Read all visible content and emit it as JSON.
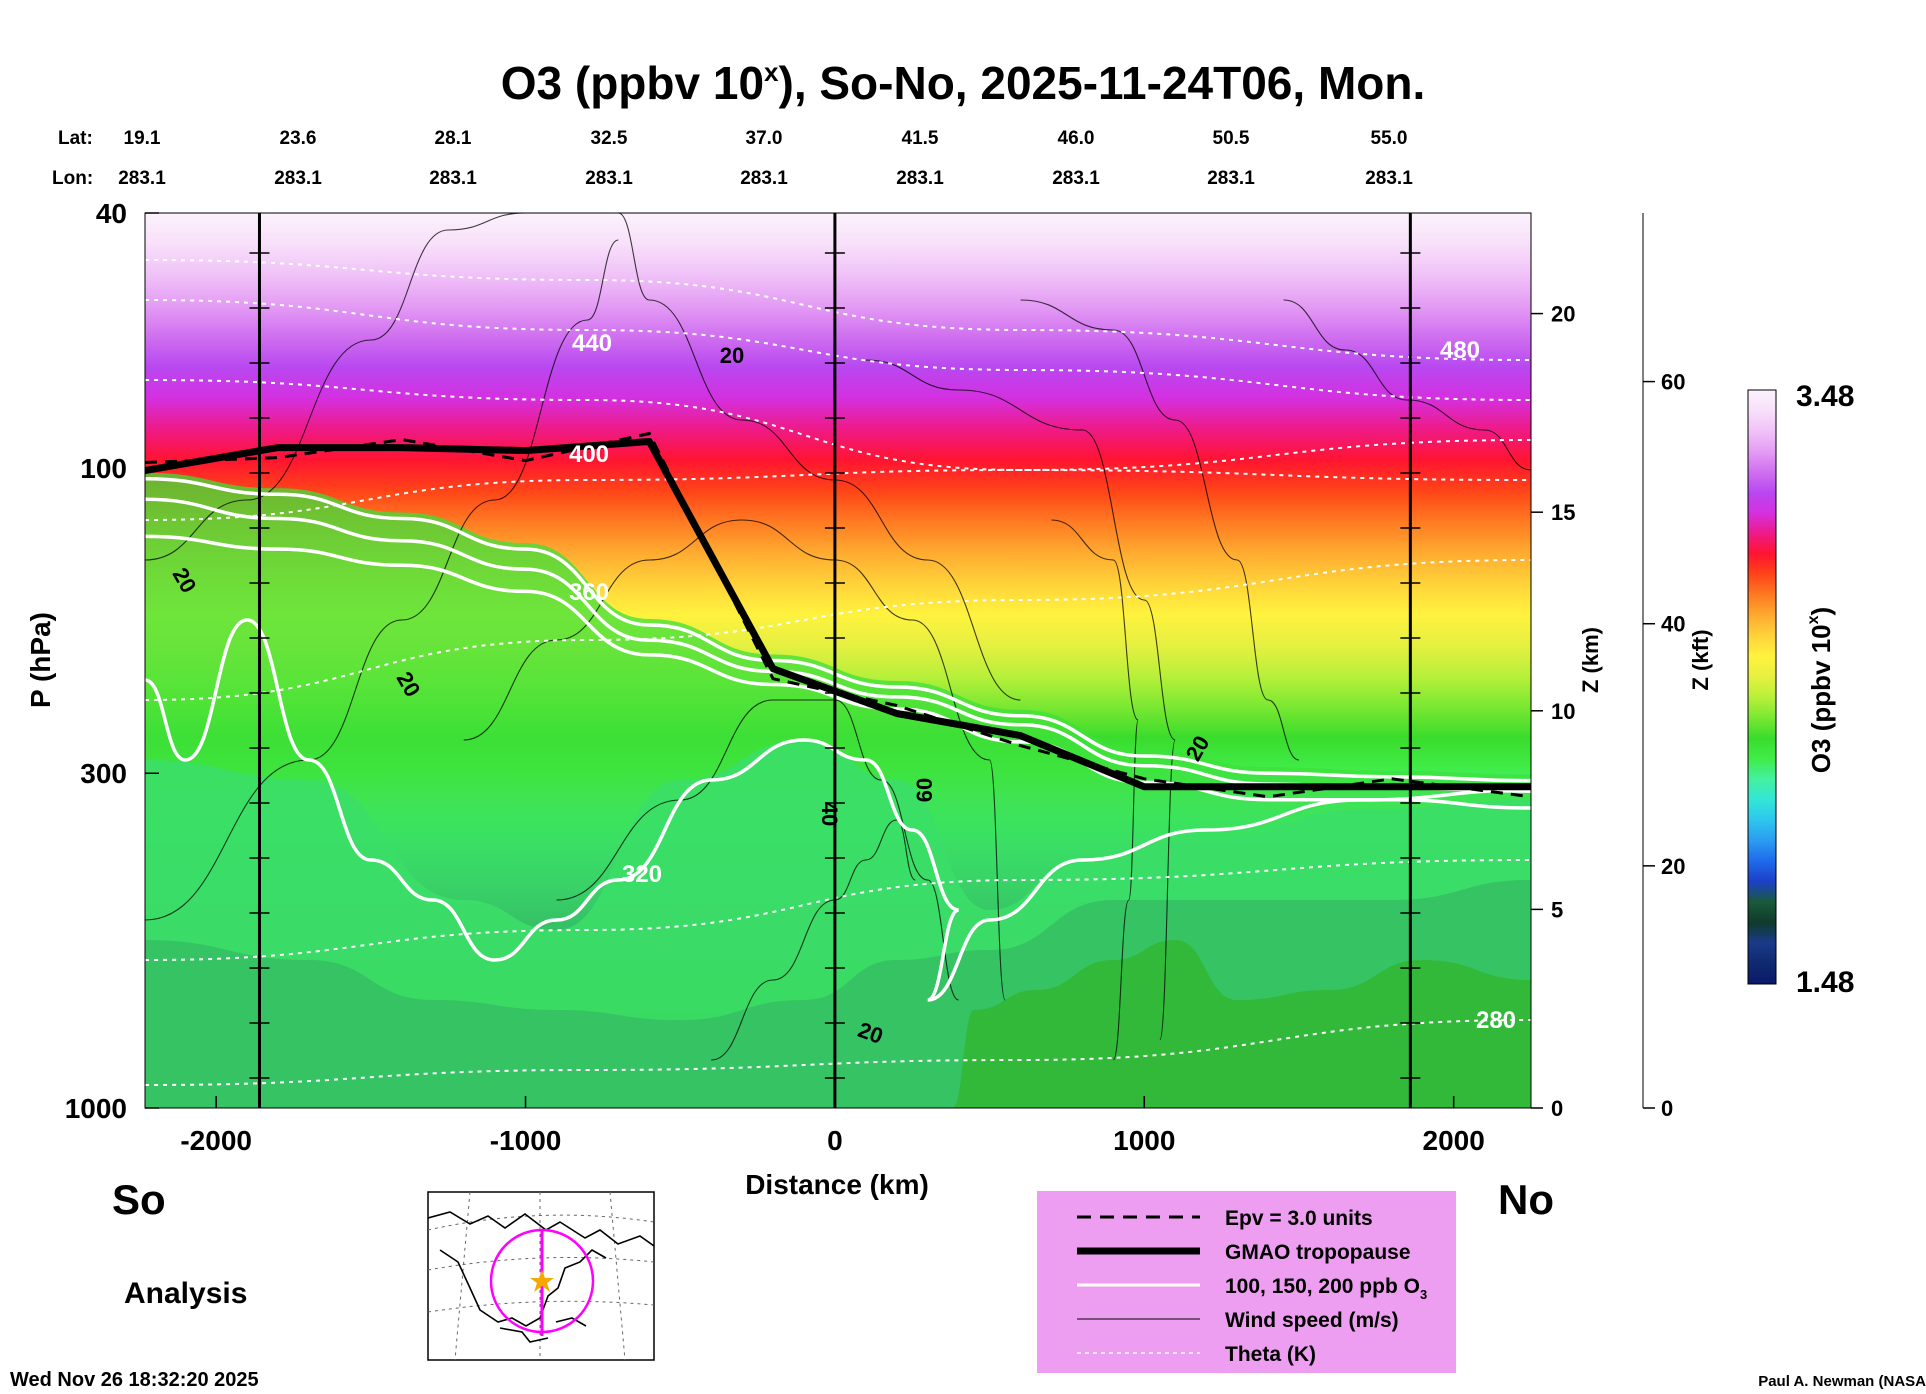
{
  "chart_data": {
    "type": "heatmap",
    "title": "O3 (ppbv 10",
    "title_sup": "x",
    "title_rest": "), So-No, 2025-11-24T06, Mon.",
    "xlabel": "Distance (km)",
    "ylabel": "P (hPa)",
    "xlim": [
      -2230,
      2250
    ],
    "ylim": [
      1000,
      40
    ],
    "x_ticks": [
      "-2000",
      "-1000",
      "0",
      "1000",
      "2000"
    ],
    "y_ticks": [
      "40",
      "100",
      "300",
      "1000"
    ],
    "z_km_label": "Z (km)",
    "z_km_ticks": [
      "0",
      "5",
      "10",
      "15",
      "20"
    ],
    "z_kft_label": "Z (kft)",
    "z_kft_ticks": [
      "0",
      "20",
      "40",
      "60"
    ],
    "lat_label": "Lat:",
    "lon_label": "Lon:",
    "lat_values": [
      "19.1",
      "23.6",
      "28.1",
      "32.5",
      "37.0",
      "41.5",
      "46.0",
      "50.5",
      "55.0"
    ],
    "lon_values": [
      "283.1",
      "283.1",
      "283.1",
      "283.1",
      "283.1",
      "283.1",
      "283.1",
      "283.1",
      "283.1"
    ],
    "end_labels": {
      "south": "So",
      "north": "No"
    },
    "analysis_label": "Analysis",
    "colorbar": {
      "label": "O3 (ppbv 10",
      "label_sup": "x",
      "label_rest": ")",
      "max": "3.48",
      "min": "1.48",
      "colors": [
        "#0a1a6a",
        "#10296e",
        "#1a3a8a",
        "#0f3a2b",
        "#1a5a3a",
        "#1c40c8",
        "#1f6aeb",
        "#2b9cf0",
        "#2ec6ee",
        "#33e6d6",
        "#44f0a0",
        "#40ec48",
        "#3adc2c",
        "#7ae832",
        "#b8f03a",
        "#e6f040",
        "#fff23e",
        "#ffd23a",
        "#ffaa30",
        "#ff7a22",
        "#ff4418",
        "#ff1430",
        "#ee1a88",
        "#d430e0",
        "#b848f0",
        "#d070f0",
        "#e49cf4",
        "#f0c2f8",
        "#f8e0fa",
        "#fcf2fc"
      ]
    },
    "profiles": {
      "x": [
        -2230,
        -1800,
        -1400,
        -1000,
        -600,
        -200,
        200,
        600,
        1000,
        1400,
        1800,
        2250
      ],
      "tropopause_hPa": [
        101,
        93,
        93,
        94,
        91,
        206,
        242,
        262,
        315,
        315,
        315,
        315
      ],
      "o3_100ppb_hPa": [
        128,
        134,
        142,
        156,
        196,
        218,
        238,
        268,
        310,
        330,
        330,
        340
      ],
      "o3_150ppb_hPa": [
        112,
        120,
        130,
        144,
        186,
        208,
        228,
        252,
        292,
        312,
        316,
        320
      ],
      "o3_200ppb_hPa": [
        104,
        110,
        120,
        134,
        176,
        200,
        220,
        244,
        282,
        300,
        304,
        308
      ]
    },
    "theta_levels": [
      "280",
      "320",
      "360",
      "400",
      "440",
      "480"
    ],
    "wind_labels": [
      "20",
      "20",
      "20",
      "40",
      "60",
      "20",
      "20"
    ],
    "legend": [
      {
        "label": "Epv = 3.0 units",
        "style": "dashed"
      },
      {
        "label": "GMAO tropopause",
        "style": "thick"
      },
      {
        "label": "100, 150, 200 ppb O",
        "label_sub": "3",
        "style": "white"
      },
      {
        "label": "Wind speed (m/s)",
        "style": "thin"
      },
      {
        "label": "Theta (K)",
        "style": "dotted"
      }
    ]
  },
  "footer": {
    "timestamp": "Wed Nov 26 18:32:20 2025",
    "credit": "Paul A. Newman (NASA"
  },
  "colors": {
    "legend_bg": "#ee9ef0",
    "map_line": "#ff00ff",
    "map_star": "#f6a800"
  }
}
